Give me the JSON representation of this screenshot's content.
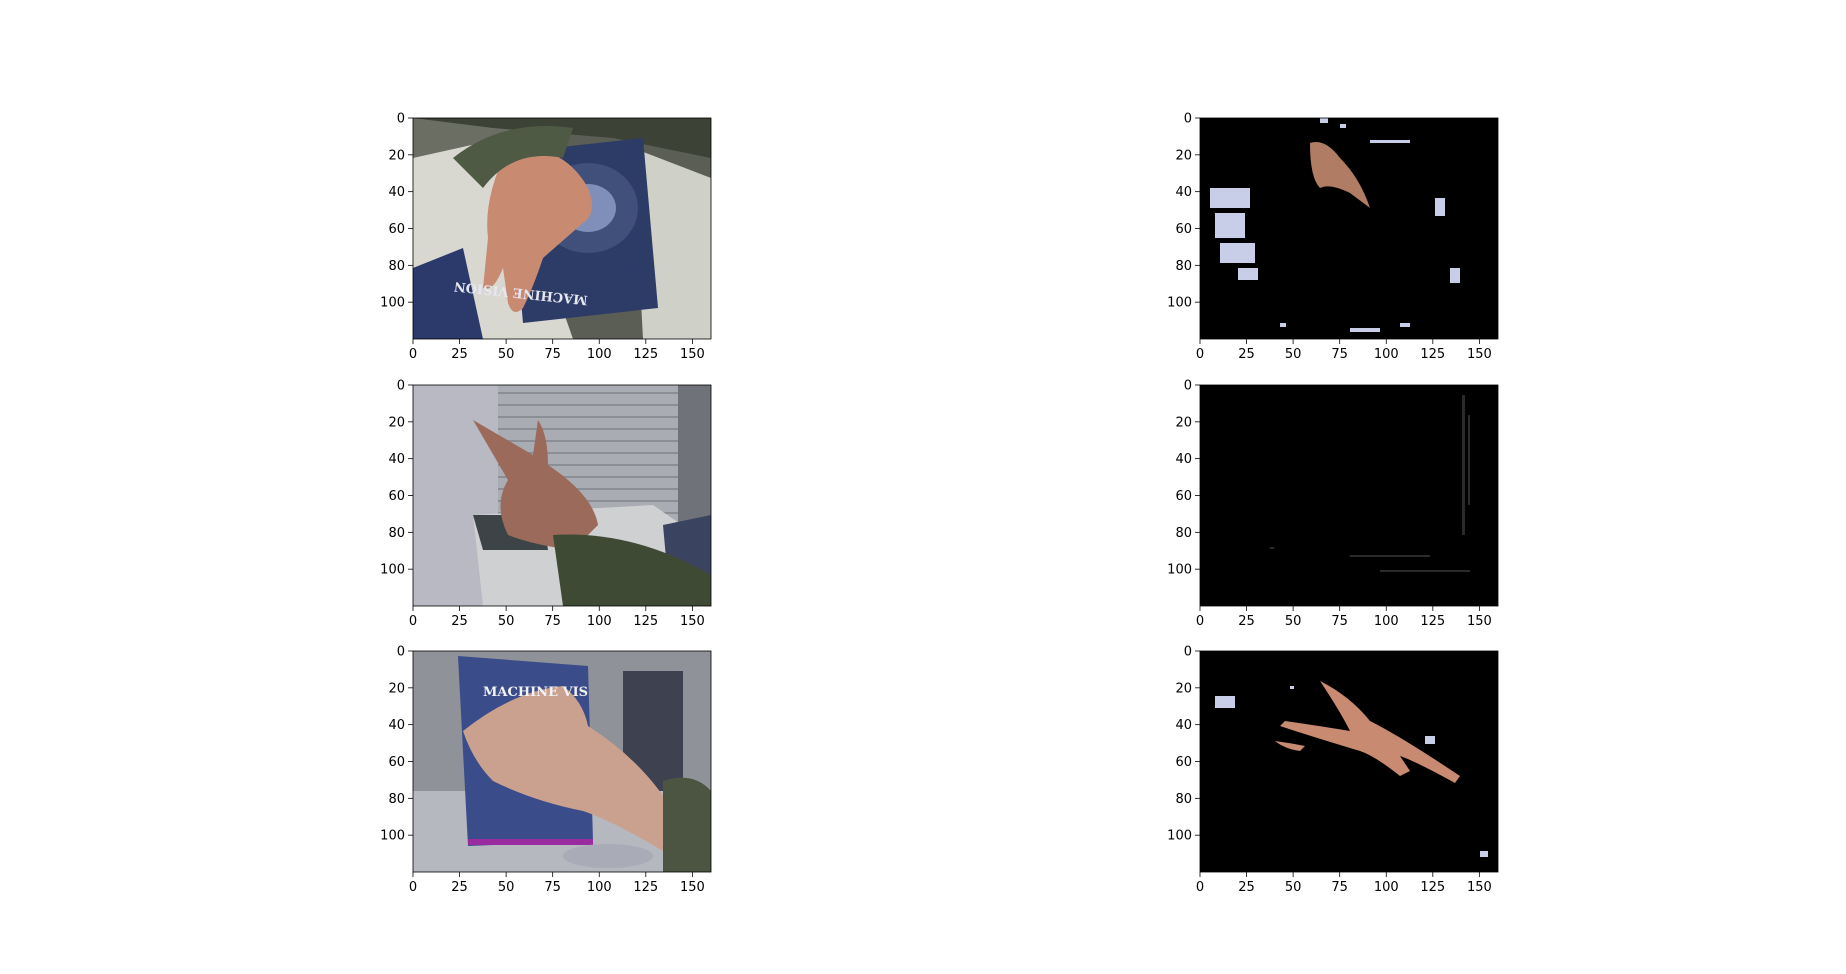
{
  "chart_data": [
    {
      "type": "image",
      "panel": "original",
      "row": 0,
      "content": "hand resting on book cover",
      "cover_text": "MACHINE VISION",
      "xlim": [
        0,
        160
      ],
      "ylim": [
        120,
        0
      ],
      "xticks": [
        0,
        25,
        50,
        75,
        100,
        125,
        150
      ],
      "yticks": [
        0,
        20,
        40,
        60,
        80,
        100
      ]
    },
    {
      "type": "image",
      "panel": "segmented",
      "row": 0,
      "content": "skin-segmentation mask of hand over book scene",
      "xlim": [
        0,
        160
      ],
      "ylim": [
        120,
        0
      ],
      "xticks": [
        0,
        25,
        50,
        75,
        100,
        125,
        150
      ],
      "yticks": [
        0,
        20,
        40,
        60,
        80,
        100
      ]
    },
    {
      "type": "image",
      "panel": "original",
      "row": 1,
      "content": "hand pointing near window blinds",
      "xlim": [
        0,
        160
      ],
      "ylim": [
        120,
        0
      ],
      "xticks": [
        0,
        25,
        50,
        75,
        100,
        125,
        150
      ],
      "yticks": [
        0,
        20,
        40,
        60,
        80,
        100
      ]
    },
    {
      "type": "image",
      "panel": "segmented",
      "row": 1,
      "content": "nearly empty segmentation mask",
      "xlim": [
        0,
        160
      ],
      "ylim": [
        120,
        0
      ],
      "xticks": [
        0,
        25,
        50,
        75,
        100,
        125,
        150
      ],
      "yticks": [
        0,
        20,
        40,
        60,
        80,
        100
      ]
    },
    {
      "type": "image",
      "panel": "original",
      "row": 2,
      "content": "hand on upright book with CD",
      "cover_text": "MACHINE VIS",
      "xlim": [
        0,
        160
      ],
      "ylim": [
        120,
        0
      ],
      "xticks": [
        0,
        25,
        50,
        75,
        100,
        125,
        150
      ],
      "yticks": [
        0,
        20,
        40,
        60,
        80,
        100
      ]
    },
    {
      "type": "image",
      "panel": "segmented",
      "row": 2,
      "content": "skin-segmentation mask of hand over book",
      "xlim": [
        0,
        160
      ],
      "ylim": [
        120,
        0
      ],
      "xticks": [
        0,
        25,
        50,
        75,
        100,
        125,
        150
      ],
      "yticks": [
        0,
        20,
        40,
        60,
        80,
        100
      ]
    }
  ],
  "colors": {
    "mask_background": "#000000",
    "skin": "#c98a72",
    "noise": "#c8cde8"
  },
  "book_titles": [
    "MACHINE VISION",
    "MACHINE VIS"
  ]
}
